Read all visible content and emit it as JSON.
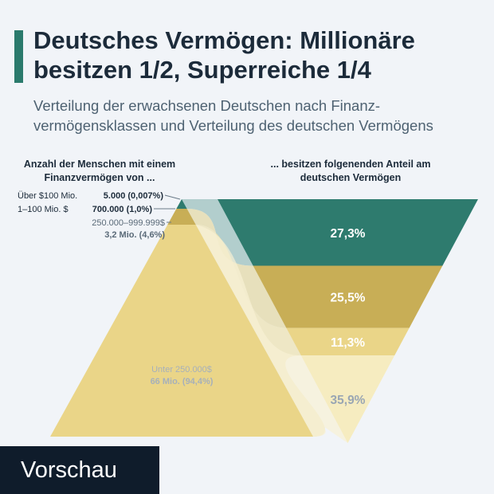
{
  "title": "Deutsches Vermögen: Millionäre besitzen 1/2, Superreiche 1/4",
  "subtitle": "Verteilung der erwachsenen Deutschen nach Finanz-vermögensklassen und Verteilung des deutschen Vermögens",
  "preview_label": "Vorschau",
  "chart_data": {
    "type": "funnel",
    "left_header": "Anzahl der Menschen mit einem Finanzvermögen von ...",
    "right_header": "... besitzen folgenenden Anteil am deutschen Vermögen",
    "segments": [
      {
        "class": "Über $100 Mio.",
        "people": "5.000 (0,007%)",
        "people_share": 0.007,
        "wealth_share": 27.3,
        "wealth_label": "27,3%",
        "color": "#2e7b6e"
      },
      {
        "class": "1–100 Mio. $",
        "people": "700.000 (1,0%)",
        "people_share": 1.0,
        "wealth_share": 25.5,
        "wealth_label": "25,5%",
        "color": "#c8ae56"
      },
      {
        "class": "250.000–999.999$",
        "people": "3,2 Mio. (4,6%)",
        "people_share": 4.6,
        "wealth_share": 11.3,
        "wealth_label": "11,3%",
        "color": "#ead588"
      },
      {
        "class": "Unter 250.000$",
        "people": "66 Mio. (94,4%)",
        "people_share": 94.4,
        "wealth_share": 35.9,
        "wealth_label": "35,9%",
        "color": "#f6ecc0"
      }
    ]
  }
}
